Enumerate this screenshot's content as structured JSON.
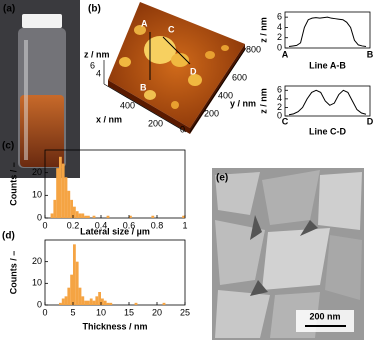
{
  "panels": {
    "a": "(a)",
    "b": "(b)",
    "e": "(e)"
  },
  "afm": {
    "z_label": "z / nm",
    "z_ticks": [
      "6",
      "4"
    ],
    "x_label": "x / nm",
    "y_label": "y / nm",
    "x_ticks": [
      "400",
      "200"
    ],
    "y_ticks": [
      "0",
      "200",
      "400",
      "600",
      "800"
    ],
    "points": [
      "A",
      "B",
      "C",
      "D"
    ]
  },
  "sem": {
    "scale_bar": "200 nm"
  },
  "chart_data": [
    {
      "type": "line",
      "xlabel": "Line A-B",
      "ylabel": "z / nm",
      "end_labels": [
        "A",
        "B"
      ],
      "color": "#000000",
      "values": [
        0.3,
        0.4,
        0.5,
        1,
        4,
        5.5,
        5.8,
        5.9,
        5.8,
        5.9,
        6,
        5.8,
        5.7,
        5.6,
        5.5,
        5,
        4,
        1.5,
        0.6,
        0.4,
        0.3
      ],
      "ylim": [
        0,
        7
      ],
      "yticks": [
        0,
        2,
        4,
        6
      ]
    },
    {
      "type": "line",
      "xlabel": "Line C-D",
      "ylabel": "z / nm",
      "end_labels": [
        "C",
        "D"
      ],
      "color": "#000000",
      "values": [
        0.3,
        0.5,
        1,
        2,
        4,
        5.5,
        6,
        5.5,
        3.5,
        2.5,
        3,
        5,
        6,
        5.5,
        3.5,
        1.5,
        0.7,
        0.4
      ],
      "ylim": [
        0,
        7
      ],
      "yticks": [
        0,
        2,
        4,
        6
      ]
    },
    {
      "type": "histogram",
      "panel": "(c)",
      "xlabel": "Lateral size / µm",
      "ylabel": "Counts / –",
      "color": "#f5a443",
      "bins": [
        0,
        0.02,
        0.04,
        0.06,
        0.08,
        0.1,
        0.12,
        0.14,
        0.16,
        0.18,
        0.2,
        0.22,
        0.24,
        0.26,
        0.28,
        0.3,
        0.32,
        0.34,
        0.36,
        0.38,
        0.4,
        0.42,
        0.44,
        0.46,
        0.48,
        0.5,
        0.52,
        0.54,
        0.56,
        0.58,
        0.6,
        0.62,
        0.64,
        0.66,
        0.68,
        0.7,
        0.72,
        0.74,
        0.76,
        0.78,
        0.8,
        0.82,
        0.84,
        0.86,
        0.88,
        0.9,
        0.92,
        0.94,
        0.96,
        0.98,
        1
      ],
      "values": [
        0,
        0,
        2,
        8,
        22,
        27,
        24,
        18,
        12,
        8,
        5,
        3,
        2,
        2,
        1,
        1,
        0,
        1,
        0,
        0,
        0,
        0,
        1,
        0,
        0,
        0,
        0,
        0,
        0,
        0,
        1,
        0,
        0,
        0,
        0,
        0,
        0,
        0,
        1,
        0,
        0,
        0,
        0,
        0,
        0,
        0,
        0,
        0,
        0,
        1
      ],
      "xlim": [
        0,
        1
      ],
      "xticks": [
        0,
        0.2,
        0.4,
        0.6,
        0.8,
        1
      ],
      "ylim": [
        0,
        30
      ],
      "yticks": [
        0,
        10,
        20
      ]
    },
    {
      "type": "histogram",
      "panel": "(d)",
      "xlabel": "Thickness / nm",
      "ylabel": "Counts / –",
      "color": "#f5a443",
      "bins": [
        0,
        0.5,
        1,
        1.5,
        2,
        2.5,
        3,
        3.5,
        4,
        4.5,
        5,
        5.5,
        6,
        6.5,
        7,
        7.5,
        8,
        8.5,
        9,
        9.5,
        10,
        10.5,
        11,
        11.5,
        12,
        12.5,
        13,
        13.5,
        14,
        14.5,
        15,
        15.5,
        16,
        16.5,
        17,
        17.5,
        18,
        18.5,
        19,
        19.5,
        20,
        20.5,
        21,
        21.5,
        22,
        22.5,
        23,
        23.5,
        24,
        24.5,
        25
      ],
      "values": [
        0,
        0,
        0,
        0,
        0,
        1,
        3,
        4,
        8,
        14,
        28,
        20,
        8,
        4,
        2,
        2,
        3,
        2,
        4,
        6,
        3,
        2,
        1,
        1,
        0,
        0,
        0,
        0,
        0,
        0,
        0,
        0,
        1,
        0,
        0,
        0,
        0,
        0,
        0,
        0,
        0,
        0,
        1,
        0,
        0,
        0,
        0,
        0,
        0,
        0
      ],
      "xlim": [
        0,
        25
      ],
      "xticks": [
        0,
        5,
        10,
        15,
        20,
        25
      ],
      "ylim": [
        0,
        30
      ],
      "yticks": [
        0,
        10,
        20
      ]
    }
  ]
}
